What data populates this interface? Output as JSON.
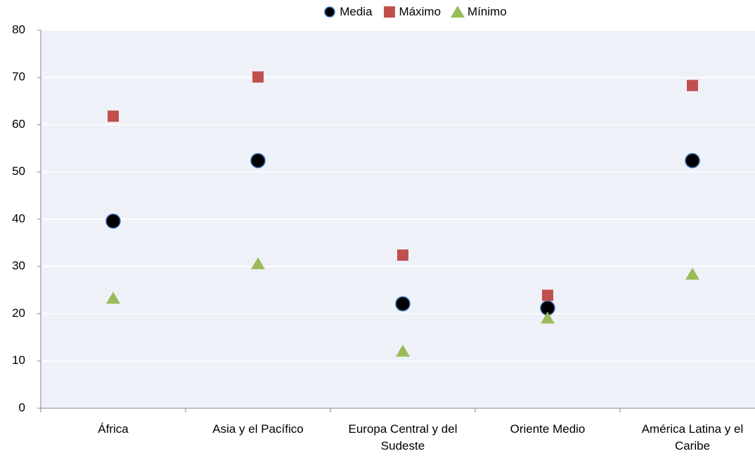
{
  "chart_data": {
    "type": "scatter",
    "categories": [
      "África",
      "Asia y el Pacífico",
      "Europa Central y del Sudeste",
      "Oriente Medio",
      "América Latina y el Caribe"
    ],
    "series": [
      {
        "name": "Media",
        "color": "#000000",
        "marker": "circle",
        "values": [
          39.6,
          52.4,
          22.1,
          21.2,
          52.4
        ]
      },
      {
        "name": "Máximo",
        "color": "#c0504d",
        "marker": "square",
        "values": [
          61.8,
          70.1,
          32.4,
          23.9,
          68.3
        ]
      },
      {
        "name": "Mínimo",
        "color": "#9bbb59",
        "marker": "triangle",
        "values": [
          23.3,
          30.6,
          12.1,
          19.1,
          28.4
        ]
      }
    ],
    "ylim": [
      0,
      80
    ],
    "yticks": [
      0,
      10,
      20,
      30,
      40,
      50,
      60,
      70,
      80
    ],
    "grid": true,
    "legend": "top"
  }
}
